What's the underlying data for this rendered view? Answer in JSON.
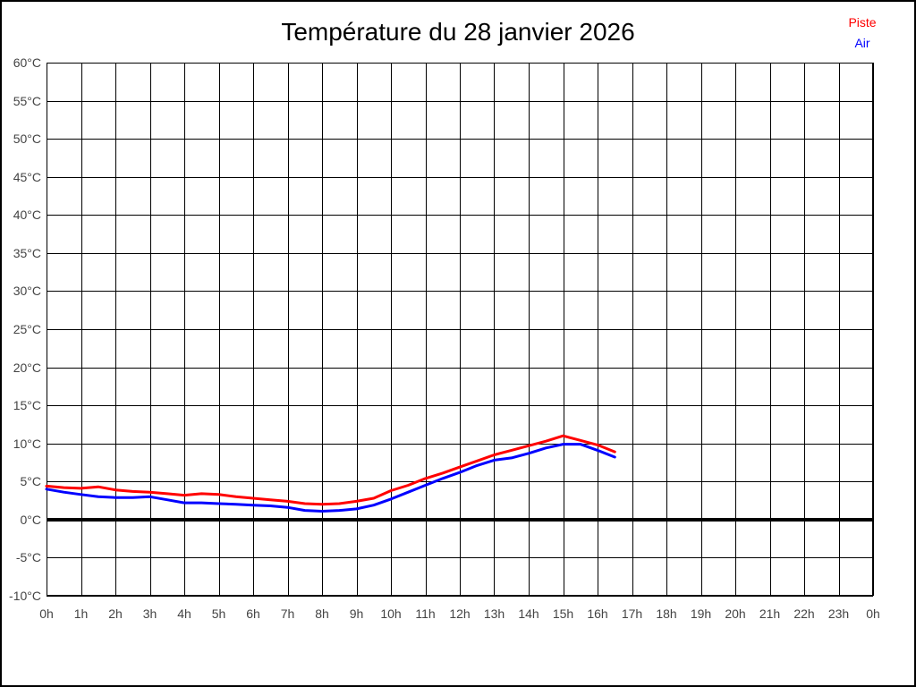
{
  "page": {
    "title": "Température du 28 janvier 2026"
  },
  "legend": {
    "position": "top-right",
    "items": [
      {
        "label": "Piste",
        "color": "#ff0000"
      },
      {
        "label": "Air",
        "color": "#0000ff"
      }
    ]
  },
  "chart_data": {
    "type": "line",
    "title": "Température du 28 janvier 2026",
    "xlabel": "",
    "ylabel": "",
    "xlim": [
      0,
      24
    ],
    "ylim": [
      -10,
      60
    ],
    "y_step": 5,
    "grid": true,
    "grid_color": "#000000",
    "zero_line": {
      "value": 0,
      "color": "#000000",
      "width": 4
    },
    "x_tick_labels": [
      "0h",
      "1h",
      "2h",
      "3h",
      "4h",
      "5h",
      "6h",
      "7h",
      "8h",
      "9h",
      "10h",
      "11h",
      "12h",
      "13h",
      "14h",
      "15h",
      "16h",
      "17h",
      "18h",
      "19h",
      "20h",
      "21h",
      "22h",
      "23h",
      "0h"
    ],
    "x_tick_values": [
      0,
      1,
      2,
      3,
      4,
      5,
      6,
      7,
      8,
      9,
      10,
      11,
      12,
      13,
      14,
      15,
      16,
      17,
      18,
      19,
      20,
      21,
      22,
      23,
      24
    ],
    "y_tick_labels": [
      "60°C",
      "55°C",
      "50°C",
      "45°C",
      "40°C",
      "35°C",
      "30°C",
      "25°C",
      "20°C",
      "15°C",
      "10°C",
      "5°C",
      "0°C",
      "-5°C",
      "-10°C"
    ],
    "y_tick_values": [
      60,
      55,
      50,
      45,
      40,
      35,
      30,
      25,
      20,
      15,
      10,
      5,
      0,
      -5,
      -10
    ],
    "x_hours": [
      0,
      0.5,
      1,
      1.5,
      2,
      2.5,
      3,
      3.5,
      4,
      4.5,
      5,
      5.5,
      6,
      6.5,
      7,
      7.5,
      8,
      8.5,
      9,
      9.5,
      10,
      10.5,
      11,
      11.5,
      12,
      12.5,
      13,
      13.5,
      14,
      14.5,
      15,
      15.5,
      16,
      16.5
    ],
    "series": [
      {
        "name": "Piste",
        "color": "#ff0000",
        "values": [
          4.4,
          4.2,
          4.1,
          4.3,
          3.9,
          3.7,
          3.6,
          3.4,
          3.2,
          3.4,
          3.3,
          3.0,
          2.8,
          2.6,
          2.4,
          2.1,
          2.0,
          2.1,
          2.4,
          2.8,
          3.8,
          4.5,
          5.4,
          6.1,
          6.9,
          7.7,
          8.5,
          9.1,
          9.7,
          10.3,
          11.0,
          10.4,
          9.8,
          8.9
        ]
      },
      {
        "name": "Air",
        "color": "#0000ff",
        "values": [
          4.0,
          3.6,
          3.3,
          3.0,
          2.9,
          2.9,
          3.0,
          2.6,
          2.2,
          2.2,
          2.1,
          2.0,
          1.9,
          1.8,
          1.6,
          1.2,
          1.1,
          1.2,
          1.4,
          1.9,
          2.7,
          3.6,
          4.5,
          5.4,
          6.2,
          7.1,
          7.8,
          8.1,
          8.7,
          9.4,
          9.9,
          9.9,
          9.1,
          8.2
        ]
      }
    ]
  }
}
